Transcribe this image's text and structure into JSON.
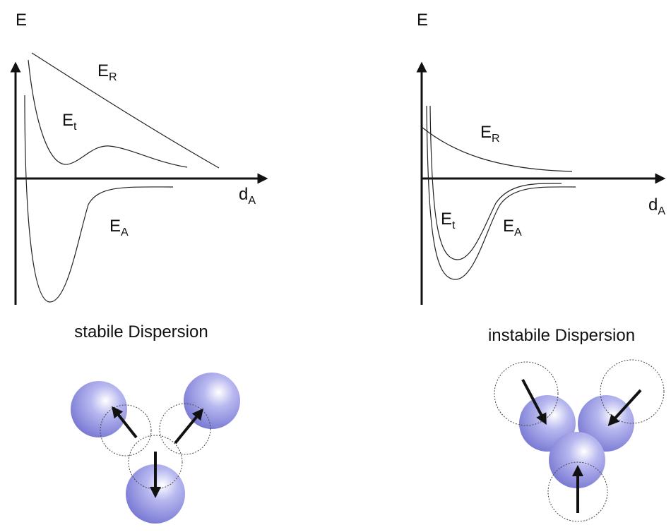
{
  "panels": [
    {
      "y_label": "E",
      "x_label": {
        "base": "d",
        "sub": "A"
      },
      "curve_labels": [
        {
          "base": "E",
          "sub": "R"
        },
        {
          "base": "E",
          "sub": "t"
        },
        {
          "base": "E",
          "sub": "A"
        }
      ],
      "caption": "stabile Dispersion"
    },
    {
      "y_label": "E",
      "x_label": {
        "base": "d",
        "sub": "A"
      },
      "curve_labels": [
        {
          "base": "E",
          "sub": "R"
        },
        {
          "base": "E",
          "sub": "t"
        },
        {
          "base": "E",
          "sub": "A"
        }
      ],
      "caption": "instabile Dispersion"
    }
  ]
}
